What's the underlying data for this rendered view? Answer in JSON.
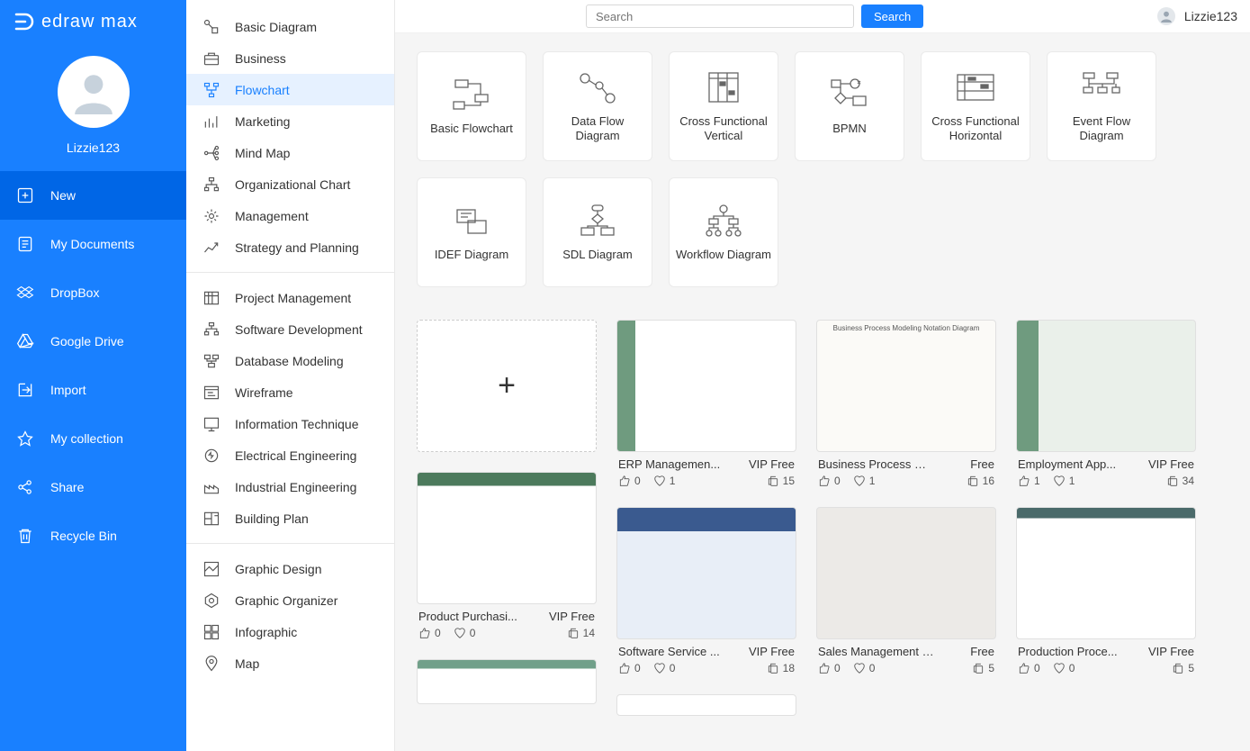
{
  "app_name": "edraw max",
  "colors": {
    "primary": "#1980ff",
    "sidebar": "#1980ff",
    "active": "#0066e6",
    "catSelected": "#e6f1ff"
  },
  "user": {
    "name": "Lizzie123",
    "corner_name": "Lizzie123"
  },
  "search": {
    "placeholder": "Search",
    "button": "Search"
  },
  "sidebar_items": [
    {
      "id": "new",
      "label": "New",
      "active": true
    },
    {
      "id": "my-documents",
      "label": "My Documents"
    },
    {
      "id": "dropbox",
      "label": "DropBox"
    },
    {
      "id": "google-drive",
      "label": "Google Drive"
    },
    {
      "id": "import",
      "label": "Import"
    },
    {
      "id": "my-collection",
      "label": "My collection"
    },
    {
      "id": "share",
      "label": "Share"
    },
    {
      "id": "recycle-bin",
      "label": "Recycle Bin"
    }
  ],
  "categories": [
    [
      {
        "id": "basic-diagram",
        "label": "Basic Diagram"
      },
      {
        "id": "business",
        "label": "Business"
      },
      {
        "id": "flowchart",
        "label": "Flowchart",
        "selected": true
      },
      {
        "id": "marketing",
        "label": "Marketing"
      },
      {
        "id": "mind-map",
        "label": "Mind Map"
      },
      {
        "id": "org-chart",
        "label": "Organizational Chart"
      },
      {
        "id": "management",
        "label": "Management"
      },
      {
        "id": "strategy",
        "label": "Strategy and Planning"
      }
    ],
    [
      {
        "id": "project-management",
        "label": "Project Management"
      },
      {
        "id": "software-dev",
        "label": "Software Development"
      },
      {
        "id": "db-modeling",
        "label": "Database Modeling"
      },
      {
        "id": "wireframe",
        "label": "Wireframe"
      },
      {
        "id": "info-tech",
        "label": "Information Technique"
      },
      {
        "id": "elec-eng",
        "label": "Electrical Engineering"
      },
      {
        "id": "ind-eng",
        "label": "Industrial Engineering"
      },
      {
        "id": "building-plan",
        "label": "Building Plan"
      }
    ],
    [
      {
        "id": "graphic-design",
        "label": "Graphic Design"
      },
      {
        "id": "graphic-organizer",
        "label": "Graphic Organizer"
      },
      {
        "id": "infographic",
        "label": "Infographic"
      },
      {
        "id": "map",
        "label": "Map"
      }
    ]
  ],
  "diagram_types": [
    {
      "id": "basic-flowchart",
      "label": "Basic Flowchart"
    },
    {
      "id": "data-flow",
      "label": "Data Flow Diagram"
    },
    {
      "id": "cross-func-v",
      "label": "Cross Functional Vertical"
    },
    {
      "id": "bpmn",
      "label": "BPMN"
    },
    {
      "id": "cross-func-h",
      "label": "Cross Functional Horizontal"
    },
    {
      "id": "event-flow",
      "label": "Event Flow Diagram"
    },
    {
      "id": "idef",
      "label": "IDEF Diagram"
    },
    {
      "id": "sdl",
      "label": "SDL Diagram"
    },
    {
      "id": "workflow",
      "label": "Workflow Diagram"
    }
  ],
  "templates": {
    "col0": [
      {
        "new": true
      },
      {
        "title": "Product Purchasi...",
        "tag": "VIP Free",
        "likes": 0,
        "favs": 0,
        "copies": 14,
        "bg": "bg-procgreen"
      }
    ],
    "col1": [
      {
        "title": "ERP Managemen...",
        "tag": "VIP Free",
        "likes": 0,
        "favs": 1,
        "copies": 15,
        "bg": "bg-green"
      },
      {
        "title": "Software Service ...",
        "tag": "VIP Free",
        "likes": 0,
        "favs": 0,
        "copies": 18,
        "bg": "bg-blue"
      }
    ],
    "col2": [
      {
        "title": "Business Process Mo...",
        "tag": "Free",
        "likes": 0,
        "favs": 1,
        "copies": 16,
        "bg": "bg-light",
        "caption": "Business Process Modeling Notation Diagram"
      },
      {
        "title": "Sales Management C...",
        "tag": "Free",
        "likes": 0,
        "favs": 0,
        "copies": 5,
        "bg": "bg-gray"
      }
    ],
    "col3": [
      {
        "title": "Employment App...",
        "tag": "VIP Free",
        "likes": 1,
        "favs": 1,
        "copies": 34,
        "bg": "bg-green2"
      },
      {
        "title": "Production Proce...",
        "tag": "VIP Free",
        "likes": 0,
        "favs": 0,
        "copies": 5,
        "bg": "bg-teal"
      }
    ]
  }
}
